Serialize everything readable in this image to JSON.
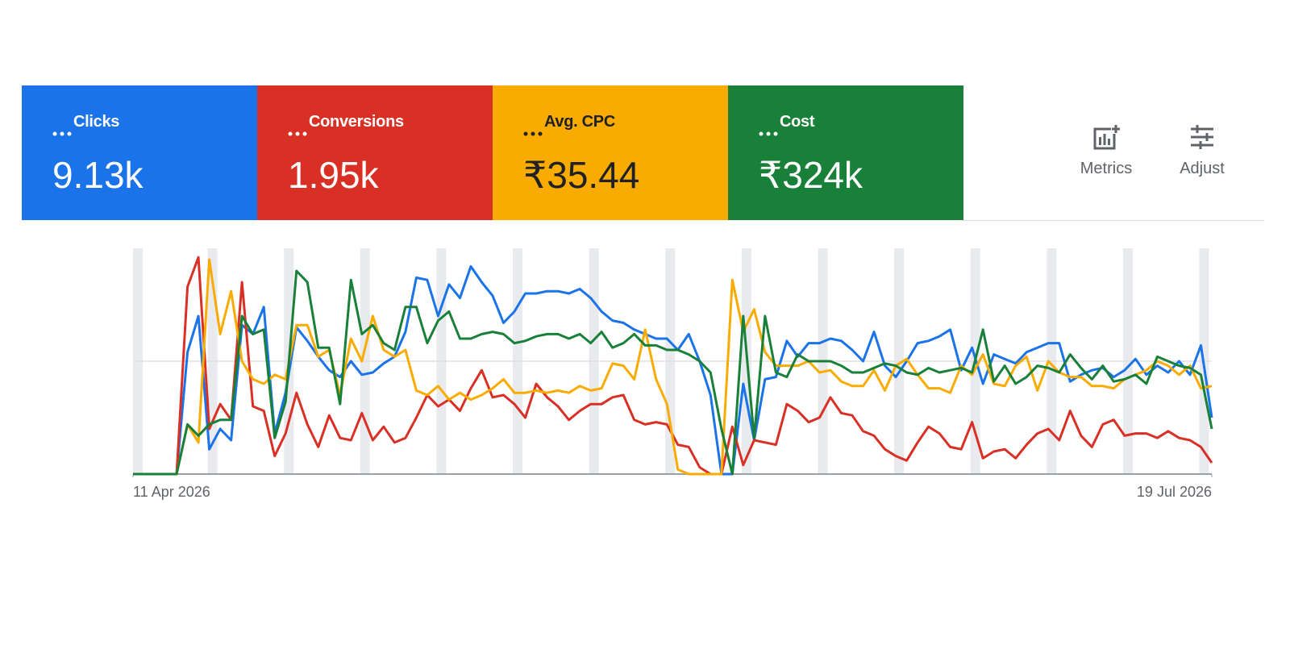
{
  "metrics": [
    {
      "label": "Clicks",
      "value": "9.13k",
      "color": "#1a73e8",
      "text_color": "#ffffff"
    },
    {
      "label": "Conversions",
      "value": "1.95k",
      "color": "#d93025",
      "text_color": "#ffffff"
    },
    {
      "label": "Avg. CPC",
      "value": "₹35.44",
      "color": "#f9ab00",
      "text_color": "#202124"
    },
    {
      "label": "Cost",
      "value": "₹324k",
      "color": "#188038",
      "text_color": "#ffffff"
    }
  ],
  "buttons": [
    "Metrics",
    "Adjust"
  ],
  "chart_data": {
    "type": "line",
    "xlim": [
      0,
      99
    ],
    "ylim": [
      0,
      100
    ],
    "xticks": [
      {
        "value": 0,
        "label": "11 Apr 2026"
      },
      {
        "value": 99,
        "label": "19 Jul 2026"
      }
    ],
    "series": [
      {
        "color": "#1a73e8",
        "values": [
          0,
          0,
          0,
          0,
          0,
          54,
          70,
          11,
          20,
          15,
          66,
          62,
          74,
          18,
          36,
          65,
          59,
          52,
          46,
          43,
          50,
          44,
          45,
          49,
          52,
          63,
          87,
          86,
          70,
          84,
          78,
          92,
          85,
          79,
          67,
          72,
          80,
          80,
          81,
          81,
          80,
          82,
          78,
          72,
          68,
          67,
          64,
          62,
          60,
          60,
          55,
          62,
          50,
          35,
          0,
          0,
          40,
          15,
          42,
          43,
          59,
          52,
          58,
          58,
          60,
          59,
          55,
          50,
          63,
          48,
          43,
          50,
          58,
          59,
          61,
          64,
          46,
          56,
          40,
          53,
          51,
          49,
          54,
          56,
          58,
          58,
          41,
          44,
          46,
          47,
          43,
          46,
          51,
          44,
          48,
          45,
          50,
          44,
          57,
          25
        ]
      },
      {
        "color": "#d93025",
        "values": [
          0,
          0,
          0,
          0,
          0,
          83,
          96,
          20,
          31,
          24,
          85,
          30,
          28,
          8,
          18,
          36,
          22,
          12,
          26,
          16,
          15,
          27,
          15,
          21,
          14,
          16,
          25,
          35,
          30,
          33,
          28,
          38,
          46,
          34,
          35,
          31,
          25,
          40,
          34,
          30,
          24,
          28,
          31,
          31,
          34,
          35,
          24,
          22,
          23,
          22,
          13,
          12,
          3,
          0,
          0,
          21,
          4,
          15,
          14,
          13,
          31,
          28,
          23,
          25,
          34,
          27,
          26,
          19,
          17,
          11,
          8,
          6,
          14,
          21,
          18,
          12,
          11,
          23,
          7,
          10,
          11,
          7,
          13,
          18,
          20,
          15,
          28,
          17,
          12,
          22,
          24,
          17,
          18,
          18,
          16,
          19,
          16,
          15,
          12,
          5
        ]
      },
      {
        "color": "#f9ab00",
        "values": [
          0,
          0,
          0,
          0,
          0,
          22,
          14,
          95,
          62,
          81,
          50,
          42,
          40,
          44,
          42,
          66,
          66,
          52,
          55,
          35,
          60,
          50,
          70,
          55,
          52,
          55,
          37,
          35,
          39,
          33,
          36,
          33,
          35,
          38,
          42,
          36,
          36,
          37,
          36,
          37,
          36,
          39,
          37,
          38,
          49,
          48,
          42,
          64,
          42,
          31,
          2,
          0,
          0,
          0,
          0,
          86,
          63,
          73,
          54,
          48,
          48,
          48,
          50,
          45,
          46,
          41,
          39,
          39,
          46,
          37,
          48,
          51,
          44,
          38,
          38,
          36,
          48,
          44,
          53,
          40,
          39,
          48,
          52,
          37,
          50,
          45,
          43,
          43,
          39,
          39,
          38,
          42,
          44,
          46,
          50,
          48,
          44,
          48,
          38,
          39
        ]
      },
      {
        "color": "#188038",
        "values": [
          0,
          0,
          0,
          0,
          0,
          22,
          17,
          22,
          24,
          24,
          70,
          62,
          64,
          16,
          32,
          90,
          85,
          56,
          56,
          31,
          86,
          62,
          66,
          58,
          55,
          74,
          74,
          58,
          68,
          72,
          60,
          60,
          62,
          63,
          62,
          58,
          59,
          61,
          62,
          62,
          60,
          62,
          58,
          63,
          56,
          58,
          62,
          57,
          57,
          55,
          55,
          53,
          50,
          45,
          20,
          0,
          70,
          16,
          70,
          45,
          43,
          53,
          50,
          50,
          50,
          48,
          45,
          45,
          47,
          49,
          48,
          45,
          44,
          47,
          45,
          46,
          47,
          45,
          64,
          41,
          48,
          40,
          43,
          48,
          47,
          45,
          53,
          47,
          42,
          48,
          41,
          42,
          44,
          40,
          52,
          50,
          48,
          47,
          44,
          20
        ]
      }
    ]
  }
}
